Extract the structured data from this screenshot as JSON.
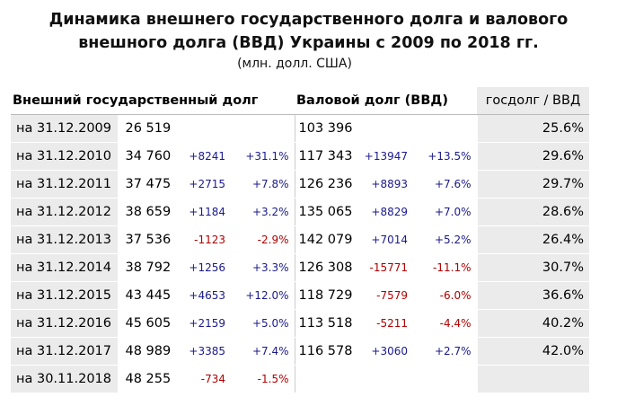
{
  "title_line1": "Динамика внешнего государственного долга и валового",
  "title_line2": "внешного долга (ВВД) Украины с 2009 по 2018 гг.",
  "subtitle": "(млн. долл. США)",
  "headers": {
    "gov_debt": "Внешний государственный долг",
    "gross_debt": "Валовой долг (ВВД)",
    "ratio": "госдолг / ВВД"
  },
  "colors": {
    "positive": "#1a1a8c",
    "negative": "#b00000",
    "shade": "#ebebeb"
  },
  "rows": [
    {
      "date": "на 31.12.2009",
      "gov": "26 519",
      "gov_abs": "",
      "gov_pct": "",
      "gross": "103 396",
      "gross_abs": "",
      "gross_pct": "",
      "ratio": "25.6%"
    },
    {
      "date": "на 31.12.2010",
      "gov": "34 760",
      "gov_abs": "+8241",
      "gov_pct": "+31.1%",
      "gross": "117 343",
      "gross_abs": "+13947",
      "gross_pct": "+13.5%",
      "ratio": "29.6%"
    },
    {
      "date": "на 31.12.2011",
      "gov": "37 475",
      "gov_abs": "+2715",
      "gov_pct": "+7.8%",
      "gross": "126 236",
      "gross_abs": "+8893",
      "gross_pct": "+7.6%",
      "ratio": "29.7%"
    },
    {
      "date": "на 31.12.2012",
      "gov": "38 659",
      "gov_abs": "+1184",
      "gov_pct": "+3.2%",
      "gross": "135 065",
      "gross_abs": "+8829",
      "gross_pct": "+7.0%",
      "ratio": "28.6%"
    },
    {
      "date": "на 31.12.2013",
      "gov": "37 536",
      "gov_abs": "-1123",
      "gov_pct": "-2.9%",
      "gross": "142 079",
      "gross_abs": "+7014",
      "gross_pct": "+5.2%",
      "ratio": "26.4%"
    },
    {
      "date": "на 31.12.2014",
      "gov": "38 792",
      "gov_abs": "+1256",
      "gov_pct": "+3.3%",
      "gross": "126 308",
      "gross_abs": "-15771",
      "gross_pct": "-11.1%",
      "ratio": "30.7%"
    },
    {
      "date": "на 31.12.2015",
      "gov": "43 445",
      "gov_abs": "+4653",
      "gov_pct": "+12.0%",
      "gross": "118 729",
      "gross_abs": "-7579",
      "gross_pct": "-6.0%",
      "ratio": "36.6%"
    },
    {
      "date": "на 31.12.2016",
      "gov": "45 605",
      "gov_abs": "+2159",
      "gov_pct": "+5.0%",
      "gross": "113 518",
      "gross_abs": "-5211",
      "gross_pct": "-4.4%",
      "ratio": "40.2%"
    },
    {
      "date": "на 31.12.2017",
      "gov": "48 989",
      "gov_abs": "+3385",
      "gov_pct": "+7.4%",
      "gross": "116 578",
      "gross_abs": "+3060",
      "gross_pct": "+2.7%",
      "ratio": "42.0%"
    },
    {
      "date": "на 30.11.2018",
      "gov": "48 255",
      "gov_abs": "-734",
      "gov_pct": "-1.5%",
      "gross": "",
      "gross_abs": "",
      "gross_pct": "",
      "ratio": ""
    }
  ]
}
